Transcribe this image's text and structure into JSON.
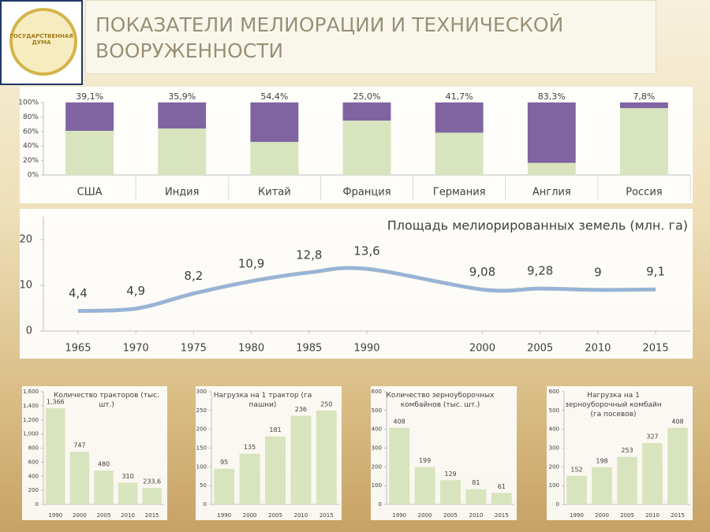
{
  "header": {
    "title": "ПОКАЗАТЕЛИ МЕЛИОРАЦИИ И ТЕХНИЧЕСКОЙ ВООРУЖЕННОСТИ",
    "logo_text": "ГОСУДАРСТВЕННАЯ ДУМА"
  },
  "chart_data": [
    {
      "type": "bar",
      "stacked": true,
      "categories": [
        "США",
        "Индия",
        "Китай",
        "Франция",
        "Германия",
        "Англия",
        "Россия"
      ],
      "series": [
        {
          "color": "#d7e4bd",
          "values": [
            60.9,
            64.1,
            45.6,
            75.0,
            58.3,
            16.7,
            92.2
          ]
        },
        {
          "color": "#8064a2",
          "values": [
            39.1,
            35.9,
            54.4,
            25.0,
            41.7,
            83.3,
            7.8
          ],
          "value_labels": [
            "39,1%",
            "35,9%",
            "54,4%",
            "25,0%",
            "41,7%",
            "83,3%",
            "7,8%"
          ]
        }
      ],
      "ylim": [
        0,
        100
      ],
      "yticks": [
        {
          "value": 0,
          "label": "0%"
        },
        {
          "value": 20,
          "label": "20%"
        },
        {
          "value": 40,
          "label": "40%"
        },
        {
          "value": 60,
          "label": "60%"
        },
        {
          "value": 80,
          "label": "80%"
        },
        {
          "value": 100,
          "label": "100%"
        }
      ]
    },
    {
      "type": "line",
      "title": "Площадь мелиорированных земель (млн. га)",
      "x": [
        1965,
        1970,
        1975,
        1980,
        1985,
        1990,
        2000,
        2005,
        2010,
        2015
      ],
      "values": [
        4.4,
        4.9,
        8.2,
        10.9,
        12.8,
        13.6,
        9.08,
        9.28,
        9,
        9.1
      ],
      "value_labels": [
        "4,4",
        "4,9",
        "8,2",
        "10,9",
        "12,8",
        "13,6",
        "9,08",
        "9,28",
        "9",
        "9,1"
      ],
      "color": "#95b3d7",
      "xlim": [
        1962,
        2018
      ],
      "xticks": [
        1965,
        1970,
        1975,
        1980,
        1985,
        1990,
        2000,
        2005,
        2010,
        2015
      ],
      "ylim": [
        0,
        25
      ],
      "yticks": [
        0,
        10,
        20
      ]
    },
    {
      "type": "bar",
      "title": "Количество тракторов (тыс. шт.)",
      "categories": [
        "1990",
        "2000",
        "2005",
        "2010",
        "2015"
      ],
      "values": [
        1366,
        747,
        480,
        310,
        233.6
      ],
      "value_labels": [
        "1,366",
        "747",
        "480",
        "310",
        "233,6"
      ],
      "color": "#d7e4bd",
      "ylim": [
        0,
        1600
      ],
      "yticks": [
        0,
        200,
        400,
        600,
        800,
        {
          "value": 1000,
          "label": "1,000"
        },
        {
          "value": 1200,
          "label": "1,200"
        },
        {
          "value": 1400,
          "label": "1,400"
        },
        {
          "value": 1600,
          "label": "1,600"
        }
      ]
    },
    {
      "type": "bar",
      "title": "Нагрузка на 1 трактор (га пашни)",
      "categories": [
        "1990",
        "2000",
        "2005",
        "2010",
        "2015"
      ],
      "values": [
        95,
        135,
        181,
        236,
        250
      ],
      "color": "#d7e4bd",
      "ylim": [
        0,
        300
      ],
      "yticks": [
        0,
        50,
        100,
        150,
        200,
        250,
        300
      ]
    },
    {
      "type": "bar",
      "title": "Количество зерноуборочных комбайнов (тыс. шт.)",
      "categories": [
        "1990",
        "2000",
        "2005",
        "2010",
        "2015"
      ],
      "values": [
        408,
        199,
        129,
        81,
        61
      ],
      "color": "#d7e4bd",
      "ylim": [
        0,
        600
      ],
      "yticks": [
        0,
        100,
        200,
        300,
        400,
        500,
        600
      ]
    },
    {
      "type": "bar",
      "title": "Нагрузка на 1 зерноуборочный комбайн (га посевов)",
      "categories": [
        "1990",
        "2000",
        "2005",
        "2010",
        "2015"
      ],
      "values": [
        152,
        198,
        253,
        327,
        408
      ],
      "color": "#d7e4bd",
      "ylim": [
        0,
        600
      ],
      "yticks": [
        0,
        100,
        200,
        300,
        400,
        500,
        600
      ]
    }
  ]
}
